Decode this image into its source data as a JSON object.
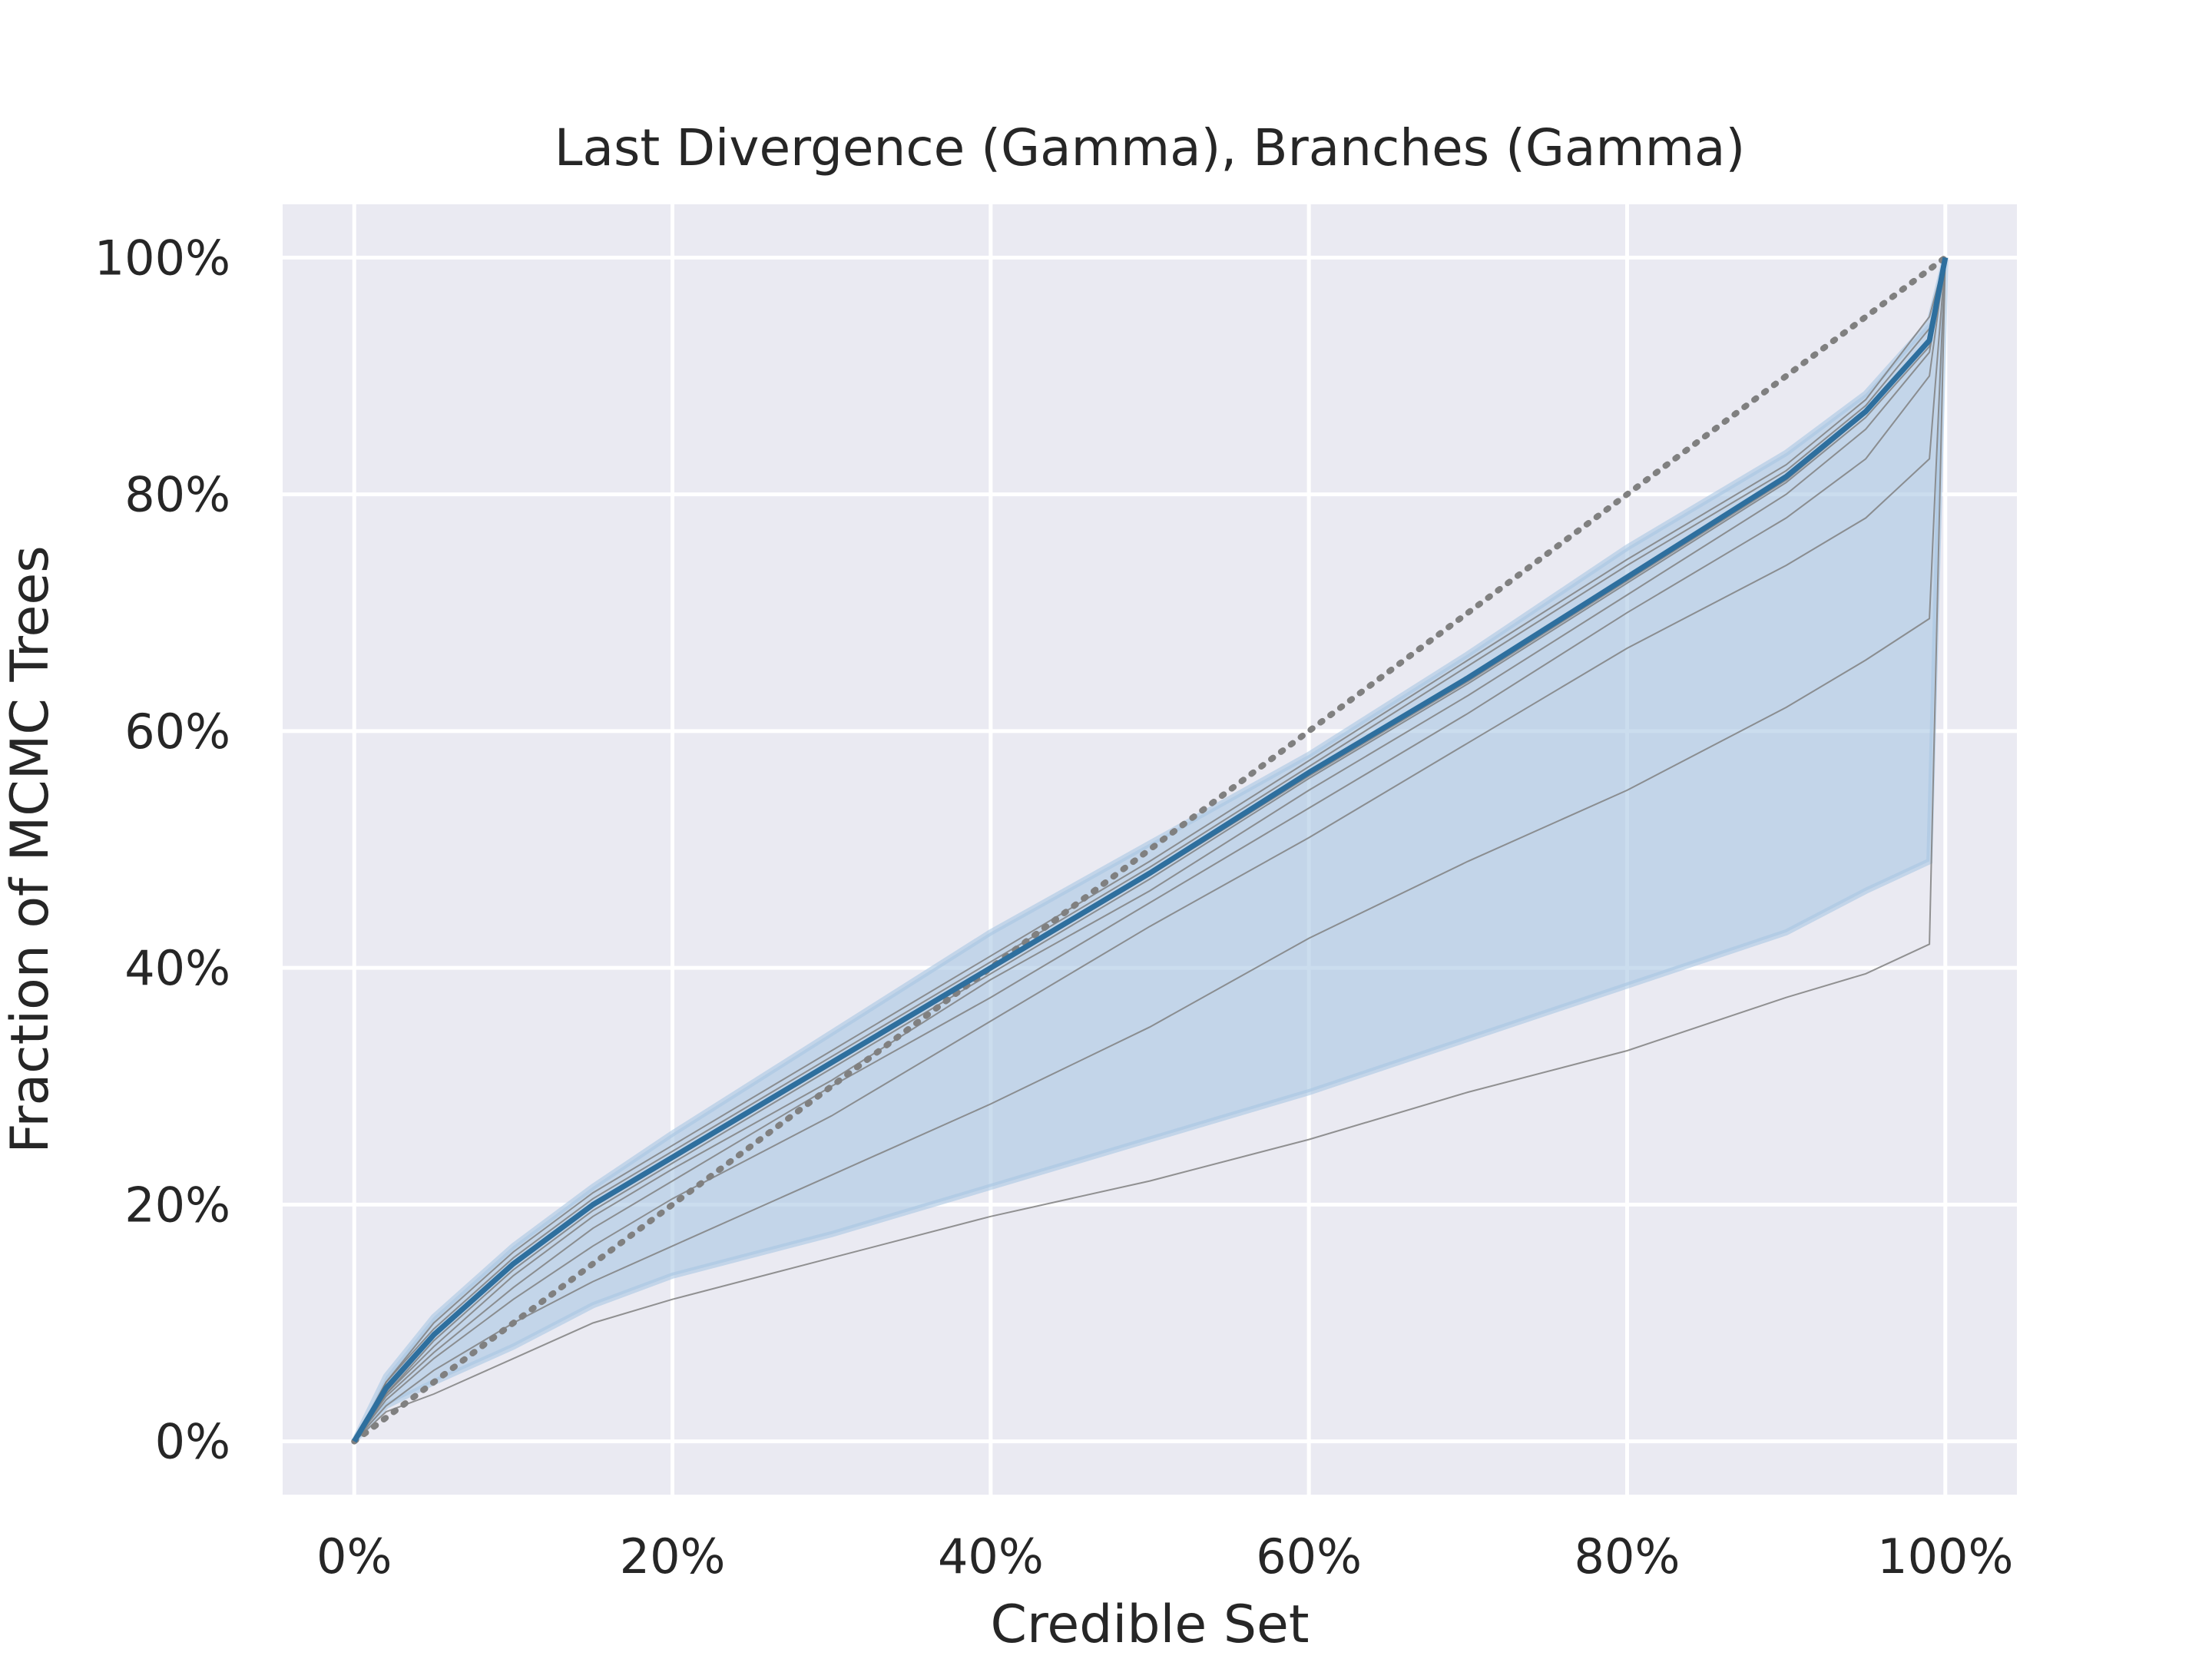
{
  "chart_data": {
    "type": "line",
    "title": "Last Divergence (Gamma), Branches (Gamma)",
    "xlabel": "Credible Set",
    "ylabel": "Fraction of MCMC Trees",
    "xlim": [
      -0.045,
      1.045
    ],
    "ylim": [
      -0.045,
      1.045
    ],
    "xticks": [
      0,
      0.2,
      0.4,
      0.6,
      0.8,
      1.0
    ],
    "xtick_labels": [
      "0%",
      "20%",
      "40%",
      "60%",
      "80%",
      "100%"
    ],
    "yticks": [
      0,
      0.2,
      0.4,
      0.6,
      0.8,
      1.0
    ],
    "ytick_labels": [
      "0%",
      "20%",
      "40%",
      "60%",
      "80%",
      "100%"
    ],
    "grid": true,
    "background": "#EAEAF2",
    "colors": {
      "mean_line": "#2E6F9E",
      "band_fill": "#A9C6E2",
      "band_edge": "#A9C6E2",
      "run_lines": "#808080",
      "reference": "#808080"
    },
    "reference_line": {
      "style": "dotted",
      "x": [
        0,
        1
      ],
      "y": [
        0,
        1
      ]
    },
    "mean_series": {
      "x": [
        0,
        0.02,
        0.05,
        0.1,
        0.15,
        0.2,
        0.3,
        0.4,
        0.5,
        0.6,
        0.7,
        0.8,
        0.9,
        0.95,
        0.99,
        1.0
      ],
      "y": [
        0,
        0.045,
        0.09,
        0.15,
        0.2,
        0.24,
        0.32,
        0.4,
        0.48,
        0.565,
        0.645,
        0.73,
        0.815,
        0.87,
        0.93,
        1.0
      ]
    },
    "band": {
      "x": [
        0,
        0.02,
        0.05,
        0.1,
        0.15,
        0.2,
        0.3,
        0.4,
        0.5,
        0.6,
        0.7,
        0.8,
        0.9,
        0.95,
        0.99,
        1.0
      ],
      "upper": [
        0,
        0.055,
        0.105,
        0.165,
        0.215,
        0.26,
        0.345,
        0.43,
        0.505,
        0.58,
        0.665,
        0.755,
        0.835,
        0.885,
        0.945,
        1.0
      ],
      "lower": [
        0,
        0.03,
        0.05,
        0.08,
        0.115,
        0.14,
        0.175,
        0.215,
        0.255,
        0.295,
        0.34,
        0.385,
        0.43,
        0.465,
        0.49,
        1.0
      ]
    },
    "run_lines": [
      {
        "x": [
          0,
          0.02,
          0.05,
          0.1,
          0.15,
          0.2,
          0.3,
          0.4,
          0.5,
          0.6,
          0.7,
          0.8,
          0.9,
          0.95,
          0.99,
          1.0
        ],
        "y": [
          0,
          0.045,
          0.09,
          0.15,
          0.2,
          0.24,
          0.32,
          0.4,
          0.48,
          0.565,
          0.645,
          0.73,
          0.815,
          0.87,
          0.93,
          1.0
        ]
      },
      {
        "x": [
          0,
          0.02,
          0.05,
          0.1,
          0.15,
          0.2,
          0.3,
          0.4,
          0.5,
          0.6,
          0.7,
          0.8,
          0.9,
          0.95,
          0.99,
          1.0
        ],
        "y": [
          0,
          0.05,
          0.095,
          0.155,
          0.205,
          0.245,
          0.325,
          0.405,
          0.485,
          0.57,
          0.655,
          0.74,
          0.82,
          0.875,
          0.94,
          1.0
        ]
      },
      {
        "x": [
          0,
          0.02,
          0.05,
          0.1,
          0.15,
          0.2,
          0.3,
          0.4,
          0.5,
          0.6,
          0.7,
          0.8,
          0.9,
          0.95,
          0.99,
          1.0
        ],
        "y": [
          0,
          0.04,
          0.085,
          0.145,
          0.195,
          0.235,
          0.315,
          0.395,
          0.475,
          0.56,
          0.64,
          0.725,
          0.81,
          0.865,
          0.925,
          1.0
        ]
      },
      {
        "x": [
          0,
          0.02,
          0.05,
          0.1,
          0.15,
          0.2,
          0.3,
          0.4,
          0.5,
          0.6,
          0.7,
          0.8,
          0.9,
          0.95,
          0.99,
          1.0
        ],
        "y": [
          0,
          0.05,
          0.1,
          0.16,
          0.21,
          0.25,
          0.33,
          0.41,
          0.49,
          0.575,
          0.66,
          0.745,
          0.825,
          0.88,
          0.95,
          1.0
        ]
      },
      {
        "x": [
          0,
          0.02,
          0.05,
          0.1,
          0.15,
          0.2,
          0.3,
          0.4,
          0.5,
          0.6,
          0.7,
          0.8,
          0.9,
          0.95,
          0.99,
          1.0
        ],
        "y": [
          0,
          0.042,
          0.088,
          0.148,
          0.198,
          0.238,
          0.318,
          0.398,
          0.478,
          0.562,
          0.642,
          0.727,
          0.812,
          0.868,
          0.928,
          1.0
        ]
      },
      {
        "x": [
          0,
          0.02,
          0.05,
          0.1,
          0.15,
          0.2,
          0.3,
          0.4,
          0.5,
          0.6,
          0.7,
          0.8,
          0.9,
          0.95,
          0.99,
          1.0
        ],
        "y": [
          0,
          0.04,
          0.08,
          0.14,
          0.19,
          0.23,
          0.305,
          0.39,
          0.465,
          0.55,
          0.63,
          0.715,
          0.8,
          0.855,
          0.92,
          1.0
        ]
      },
      {
        "x": [
          0,
          0.02,
          0.05,
          0.1,
          0.15,
          0.2,
          0.3,
          0.4,
          0.5,
          0.6,
          0.7,
          0.8,
          0.9,
          0.95,
          0.99,
          1.0
        ],
        "y": [
          0,
          0.038,
          0.075,
          0.13,
          0.18,
          0.22,
          0.3,
          0.375,
          0.455,
          0.535,
          0.615,
          0.7,
          0.78,
          0.83,
          0.9,
          1.0
        ]
      },
      {
        "x": [
          0,
          0.02,
          0.05,
          0.1,
          0.15,
          0.2,
          0.3,
          0.4,
          0.5,
          0.6,
          0.7,
          0.8,
          0.9,
          0.95,
          0.99,
          1.0
        ],
        "y": [
          0,
          0.035,
          0.07,
          0.12,
          0.165,
          0.205,
          0.275,
          0.355,
          0.435,
          0.51,
          0.59,
          0.67,
          0.74,
          0.78,
          0.83,
          1.0
        ]
      },
      {
        "x": [
          0,
          0.02,
          0.05,
          0.1,
          0.15,
          0.2,
          0.3,
          0.4,
          0.5,
          0.6,
          0.7,
          0.8,
          0.9,
          0.95,
          0.99,
          1.0
        ],
        "y": [
          0,
          0.03,
          0.06,
          0.1,
          0.135,
          0.165,
          0.225,
          0.285,
          0.35,
          0.425,
          0.49,
          0.55,
          0.62,
          0.66,
          0.695,
          1.0
        ]
      },
      {
        "x": [
          0,
          0.02,
          0.05,
          0.1,
          0.15,
          0.2,
          0.3,
          0.4,
          0.5,
          0.6,
          0.7,
          0.8,
          0.9,
          0.95,
          0.99,
          1.0
        ],
        "y": [
          0,
          0.025,
          0.04,
          0.07,
          0.1,
          0.12,
          0.155,
          0.19,
          0.22,
          0.255,
          0.295,
          0.33,
          0.375,
          0.395,
          0.42,
          1.0
        ]
      }
    ]
  }
}
